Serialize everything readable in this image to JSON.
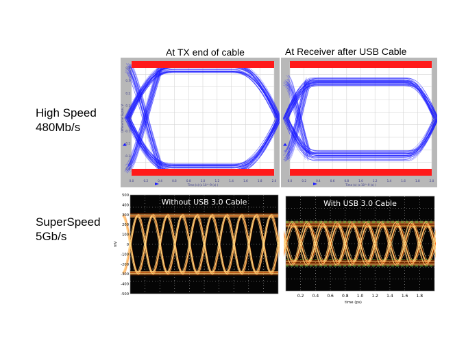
{
  "rows": {
    "high_speed": {
      "name": "High Speed",
      "rate": "480Mb/s"
    },
    "super_speed": {
      "name": "SuperSpeed",
      "rate": "5Gb/s"
    }
  },
  "colors": {
    "hs_trace": "#1a1aff",
    "hs_bg": "#ffffff",
    "hs_mask": "#ff1a1a",
    "hs_frame": "#b8b8b8",
    "ss_bg": "#050505",
    "ss_trace_core": "#ffe08a",
    "ss_trace_glow": "#ff5a00",
    "ss_grid": "#bbbbbb"
  },
  "chart_data": [
    {
      "id": "hs_tx",
      "type": "line",
      "title": "At TX end of cable",
      "x_ticks": [
        "0.0",
        "0.2",
        "0.4",
        "0.6",
        "0.8",
        "1.0",
        "1.2",
        "1.4",
        "1.6",
        "1.8",
        "2.0"
      ],
      "y_ticks": [
        "0.4",
        "0.3",
        "0.2",
        "0.1",
        "0",
        "-0.1",
        "-0.2",
        "-0.3",
        "-0.4"
      ],
      "xlim": [
        0,
        2.0
      ],
      "ylim": [
        -0.45,
        0.45
      ],
      "ylabel": "Differential Signal, V",
      "xlabel": "Time (s) (x 10^-9 (s) )",
      "mask": "red bars at top and bottom",
      "series": [
        {
          "eye_crossings_x": [
            0.0,
            2.0
          ],
          "levels": [
            0.4,
            -0.4
          ]
        }
      ]
    },
    {
      "id": "hs_rx",
      "type": "line",
      "title": "At Receiver after USB Cable",
      "x_ticks": [
        "0.0",
        "0.2",
        "0.4",
        "0.6",
        "0.8",
        "1.0",
        "1.2",
        "1.4",
        "1.6",
        "1.8",
        "2.0"
      ],
      "xlim": [
        0,
        2.0
      ],
      "ylim": [
        -0.45,
        0.45
      ],
      "xlabel": "Time (s) (x 10^-9 (s) )",
      "mask": "red bars at top and bottom",
      "series": [
        {
          "eye_crossings_x": [
            0.0,
            2.0
          ],
          "levels": [
            0.3,
            -0.3
          ]
        }
      ]
    },
    {
      "id": "ss_without",
      "type": "line",
      "title": "Without USB 3.0 Cable",
      "ylabel": "mV",
      "y_ticks": [
        "500",
        "400",
        "300",
        "200",
        "100",
        "0",
        "-100",
        "-200",
        "-300",
        "-400",
        "-500"
      ],
      "ylim": [
        -500,
        500
      ],
      "x_divisions": 10,
      "grid": true,
      "series": [
        {
          "levels": [
            280,
            -280
          ],
          "unit_intervals_shown": 10
        }
      ]
    },
    {
      "id": "ss_with",
      "type": "line",
      "title": "With USB 3.0 Cable",
      "xlabel": "time (ps)",
      "x_ticks": [
        "0.2",
        "0.4",
        "0.6",
        "0.8",
        "1.0",
        "1.2",
        "1.4",
        "1.6",
        "1.8"
      ],
      "xlim": [
        0,
        2.0
      ],
      "grid": true,
      "series": [
        {
          "levels": [
            180,
            -180
          ],
          "unit_intervals_shown": 10
        }
      ]
    }
  ]
}
